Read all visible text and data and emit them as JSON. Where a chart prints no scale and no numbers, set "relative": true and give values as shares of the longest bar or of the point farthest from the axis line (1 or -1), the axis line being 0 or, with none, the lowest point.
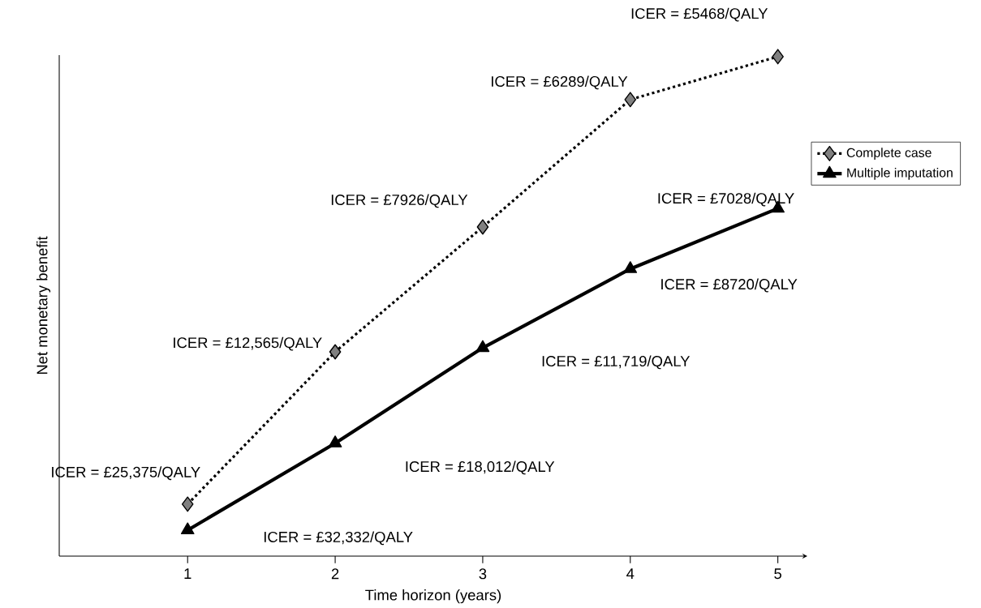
{
  "chart_data": {
    "type": "line",
    "relative": true,
    "xlabel": "Time horizon (years)",
    "ylabel": "Net monetary benefit",
    "x": [
      1,
      2,
      3,
      4,
      5
    ],
    "xlim": [
      0.13,
      5.2
    ],
    "xticks": [
      1,
      2,
      3,
      4,
      5
    ],
    "series": [
      {
        "name": "Complete case",
        "color": "#000000",
        "marker": "diamond",
        "line_style": "dotted",
        "values": [
          0.104,
          0.409,
          0.659,
          0.914,
          1.0
        ]
      },
      {
        "name": "Multiple imputation",
        "color": "#000000",
        "marker": "triangle",
        "line_style": "solid",
        "values": [
          0.052,
          0.226,
          0.417,
          0.575,
          0.696
        ]
      }
    ],
    "legend": "right",
    "grid": false,
    "annotations": [
      "ICER = £25,375/QALY",
      "ICER = £12,565/QALY",
      "ICER = £7926/QALY",
      "ICER = £6289/QALY",
      "ICER = £5468/QALY",
      "ICER = £32,332/QALY",
      "ICER = £18,012/QALY",
      "ICER = £11,719/QALY",
      "ICER = £8720/QALY",
      "ICER = £7028/QALY"
    ]
  }
}
